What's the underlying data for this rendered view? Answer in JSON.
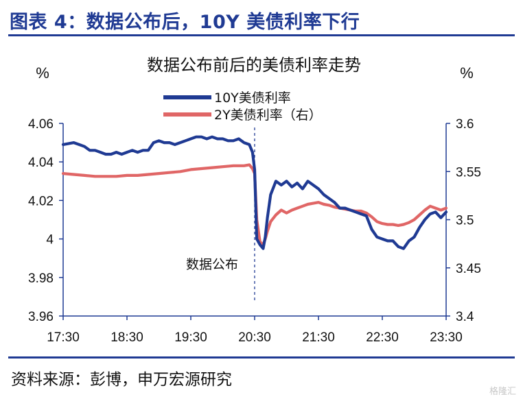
{
  "figure": {
    "title": "图表 4：数据公布后，10Y 美债利率下行",
    "source": "资料来源：彭博，申万宏源研究",
    "watermark": "格隆汇"
  },
  "chart_data": {
    "type": "line",
    "title": "数据公布前后的美债利率走势",
    "ylabel_left": "%",
    "ylabel_right": "%",
    "ylim_left": [
      3.96,
      4.06
    ],
    "ylim_right": [
      3.4,
      3.6
    ],
    "yticks_left": [
      "4.06",
      "4.04",
      "4.02",
      "4",
      "3.98",
      "3.96"
    ],
    "yticks_right": [
      "3.6",
      "3.55",
      "3.5",
      "3.45",
      "3.4"
    ],
    "xticks": [
      "17:30",
      "18:30",
      "19:30",
      "20:30",
      "21:30",
      "22:30",
      "23:30"
    ],
    "x_unit": "minutes after 17:30",
    "grid": false,
    "legend_position": "top-center",
    "colors": {
      "ten_year": "#1f3a93",
      "two_year": "#e06666",
      "axis": "#1f3a93"
    },
    "annotation": {
      "label": "数据公布",
      "x": 180
    },
    "series": [
      {
        "name": "10Y美债利率",
        "axis": "left",
        "x": [
          0,
          10,
          15,
          20,
          25,
          30,
          35,
          40,
          45,
          50,
          55,
          60,
          65,
          70,
          75,
          80,
          85,
          90,
          95,
          100,
          105,
          110,
          115,
          120,
          125,
          130,
          135,
          140,
          145,
          150,
          155,
          160,
          165,
          170,
          175,
          178,
          180,
          182,
          185,
          188,
          190,
          192,
          195,
          200,
          205,
          210,
          215,
          220,
          225,
          230,
          235,
          240,
          245,
          250,
          255,
          260,
          265,
          270,
          275,
          280,
          285,
          290,
          295,
          300,
          305,
          310,
          315,
          320,
          325,
          330,
          335,
          340,
          345,
          350,
          355,
          360
        ],
        "values": [
          4.049,
          4.05,
          4.049,
          4.048,
          4.046,
          4.046,
          4.045,
          4.044,
          4.044,
          4.045,
          4.044,
          4.045,
          4.046,
          4.045,
          4.046,
          4.046,
          4.05,
          4.051,
          4.05,
          4.05,
          4.049,
          4.05,
          4.051,
          4.052,
          4.053,
          4.053,
          4.052,
          4.053,
          4.052,
          4.052,
          4.051,
          4.051,
          4.052,
          4.05,
          4.049,
          4.045,
          4.036,
          4.0,
          3.997,
          3.995,
          4.001,
          4.011,
          4.023,
          4.03,
          4.028,
          4.03,
          4.027,
          4.029,
          4.026,
          4.03,
          4.028,
          4.026,
          4.023,
          4.021,
          4.019,
          4.016,
          4.016,
          4.015,
          4.014,
          4.013,
          4.012,
          4.005,
          4.001,
          4.0,
          3.999,
          3.999,
          3.996,
          3.995,
          3.999,
          4.001,
          4.006,
          4.01,
          4.013,
          4.014,
          4.011,
          4.014
        ]
      },
      {
        "name": "2Y美债利率（右）",
        "axis": "right",
        "x": [
          0,
          10,
          20,
          30,
          40,
          50,
          60,
          70,
          80,
          90,
          100,
          110,
          120,
          130,
          140,
          150,
          160,
          170,
          175,
          178,
          180,
          182,
          185,
          188,
          190,
          192,
          195,
          200,
          205,
          210,
          215,
          220,
          225,
          230,
          235,
          240,
          245,
          250,
          255,
          260,
          265,
          270,
          275,
          280,
          285,
          290,
          295,
          300,
          305,
          310,
          315,
          320,
          325,
          330,
          335,
          340,
          345,
          350,
          355,
          360
        ],
        "values": [
          3.548,
          3.547,
          3.546,
          3.545,
          3.545,
          3.545,
          3.546,
          3.546,
          3.547,
          3.548,
          3.549,
          3.55,
          3.552,
          3.553,
          3.554,
          3.555,
          3.556,
          3.556,
          3.557,
          3.553,
          3.548,
          3.5,
          3.477,
          3.474,
          3.48,
          3.488,
          3.498,
          3.505,
          3.51,
          3.507,
          3.51,
          3.512,
          3.514,
          3.516,
          3.517,
          3.518,
          3.516,
          3.515,
          3.513,
          3.512,
          3.511,
          3.51,
          3.509,
          3.509,
          3.507,
          3.503,
          3.498,
          3.496,
          3.495,
          3.495,
          3.494,
          3.495,
          3.497,
          3.5,
          3.505,
          3.51,
          3.514,
          3.512,
          3.51,
          3.512
        ]
      }
    ]
  }
}
